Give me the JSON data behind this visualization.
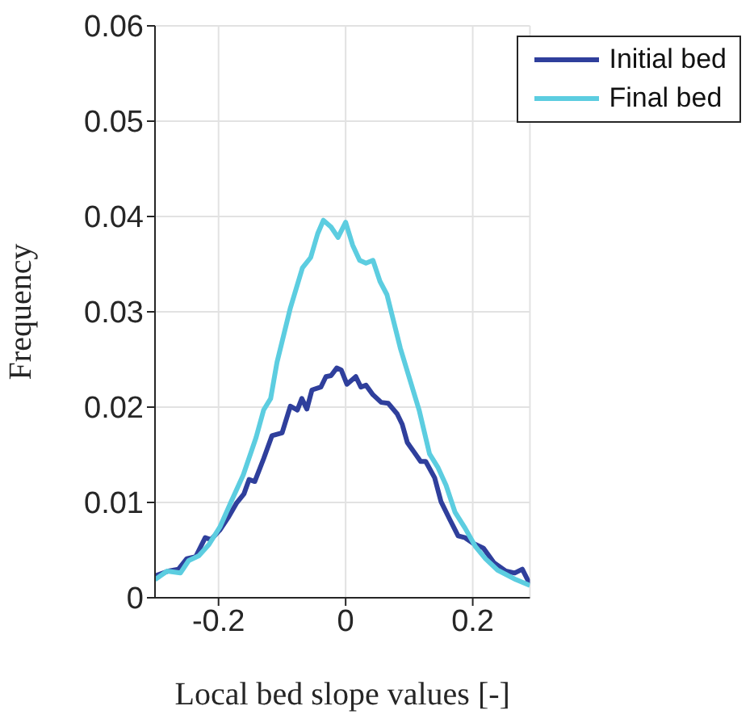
{
  "chart_data": {
    "type": "line",
    "xlabel": "Local bed slope values [-]",
    "ylabel": "Frequency",
    "xlim": [
      -0.3,
      0.29
    ],
    "xticks": [
      -0.2,
      0,
      0.2
    ],
    "ylim": [
      0,
      0.06
    ],
    "yticks": [
      0,
      0.01,
      0.02,
      0.03,
      0.04,
      0.05,
      0.06
    ],
    "grid": true,
    "legend": "top right",
    "marker": "none",
    "line_style": "solid",
    "series": [
      {
        "name": "Initial bed",
        "color": "#2f3f9c",
        "x": [
          -0.3,
          -0.279,
          -0.263,
          -0.25,
          -0.236,
          -0.221,
          -0.212,
          -0.198,
          -0.185,
          -0.172,
          -0.16,
          -0.152,
          -0.143,
          -0.129,
          -0.116,
          -0.1,
          -0.087,
          -0.076,
          -0.069,
          -0.061,
          -0.053,
          -0.039,
          -0.031,
          -0.023,
          -0.014,
          -0.007,
          0.002,
          0.016,
          0.024,
          0.032,
          0.043,
          0.056,
          0.067,
          0.081,
          0.089,
          0.097,
          0.118,
          0.126,
          0.14,
          0.15,
          0.164,
          0.177,
          0.188,
          0.201,
          0.217,
          0.233,
          0.252,
          0.266,
          0.278,
          0.287,
          0.29
        ],
        "values": [
          0.0023,
          0.0028,
          0.003,
          0.0041,
          0.0043,
          0.0063,
          0.0061,
          0.0071,
          0.0084,
          0.0099,
          0.0109,
          0.0124,
          0.0122,
          0.0146,
          0.017,
          0.0173,
          0.0201,
          0.0197,
          0.0209,
          0.0198,
          0.0218,
          0.0221,
          0.0232,
          0.0233,
          0.0241,
          0.0239,
          0.0224,
          0.0232,
          0.0221,
          0.0223,
          0.0213,
          0.0205,
          0.0204,
          0.0193,
          0.0182,
          0.0163,
          0.0143,
          0.0143,
          0.0126,
          0.0101,
          0.0082,
          0.0065,
          0.0063,
          0.0057,
          0.0052,
          0.0037,
          0.0028,
          0.0026,
          0.003,
          0.0018,
          0.0015
        ]
      },
      {
        "name": "Final bed",
        "color": "#5ccde0",
        "x": [
          -0.3,
          -0.281,
          -0.26,
          -0.247,
          -0.231,
          -0.215,
          -0.198,
          -0.18,
          -0.161,
          -0.141,
          -0.129,
          -0.118,
          -0.108,
          -0.087,
          -0.068,
          -0.055,
          -0.044,
          -0.035,
          -0.023,
          -0.012,
          0,
          0.011,
          0.022,
          0.032,
          0.043,
          0.054,
          0.065,
          0.086,
          0.116,
          0.132,
          0.145,
          0.158,
          0.172,
          0.188,
          0.204,
          0.22,
          0.239,
          0.268,
          0.29
        ],
        "values": [
          0.0019,
          0.0028,
          0.0026,
          0.0039,
          0.0044,
          0.0056,
          0.0074,
          0.0101,
          0.0129,
          0.0168,
          0.0197,
          0.0209,
          0.0247,
          0.0304,
          0.0346,
          0.0357,
          0.0382,
          0.0396,
          0.0389,
          0.0378,
          0.0394,
          0.037,
          0.0354,
          0.0351,
          0.0354,
          0.0332,
          0.0318,
          0.0262,
          0.0196,
          0.0151,
          0.0137,
          0.0118,
          0.009,
          0.0073,
          0.0054,
          0.0041,
          0.0029,
          0.0019,
          0.0013
        ]
      }
    ]
  }
}
